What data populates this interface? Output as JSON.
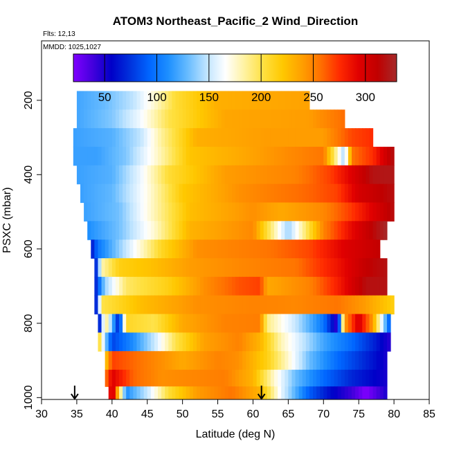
{
  "chart_data": {
    "type": "heatmap",
    "title": "ATOM3 Northeast_Pacific_2 Wind_Direction",
    "flights_label": "Flts: 12,13",
    "dates_label": "MMDD: 1025,1027",
    "xlabel": "Latitude (deg N)",
    "ylabel": "PSXC (mbar)",
    "xlim": [
      30,
      85
    ],
    "ylim": [
      1005,
      40
    ],
    "x_ticks": [
      30,
      35,
      40,
      45,
      50,
      55,
      60,
      65,
      70,
      75,
      80,
      85
    ],
    "y_ticks": [
      200,
      400,
      600,
      800,
      1000
    ],
    "colorbar": {
      "range": [
        20,
        330
      ],
      "ticks": [
        50,
        100,
        150,
        200,
        250,
        300
      ],
      "colors": [
        "#8000ff",
        "#4400dd",
        "#0000c8",
        "#0033dd",
        "#0066ff",
        "#1e90ff",
        "#66bbff",
        "#bfe4ff",
        "#ffffff",
        "#fff2a0",
        "#ffe040",
        "#ffc800",
        "#ffa000",
        "#ff7000",
        "#ff2a00",
        "#e00000",
        "#c00000",
        "#a52a2a"
      ]
    },
    "arrows": [
      34.7,
      61.2
    ],
    "layers": [
      {
        "p": 200,
        "lat_min": 35,
        "lat_max": 68,
        "profile": [
          [
            35,
            120
          ],
          [
            39,
            130
          ],
          [
            43,
            148
          ],
          [
            46,
            175
          ],
          [
            49,
            205
          ],
          [
            55,
            232
          ],
          [
            68,
            238
          ]
        ]
      },
      {
        "p": 250,
        "lat_min": 35,
        "lat_max": 73,
        "profile": [
          [
            35,
            120
          ],
          [
            40,
            135
          ],
          [
            44,
            162
          ],
          [
            48,
            200
          ],
          [
            56,
            236
          ],
          [
            68,
            240
          ],
          [
            73,
            258
          ]
        ]
      },
      {
        "p": 300,
        "lat_min": 34.5,
        "lat_max": 77,
        "profile": [
          [
            34.5,
            118
          ],
          [
            40,
            125
          ],
          [
            44,
            148
          ],
          [
            47,
            185
          ],
          [
            52,
            232
          ],
          [
            62,
            240
          ],
          [
            70,
            240
          ],
          [
            74,
            268
          ],
          [
            77,
            275
          ]
        ]
      },
      {
        "p": 350,
        "lat_min": 34.5,
        "lat_max": 80,
        "profile": [
          [
            34.5,
            118
          ],
          [
            38,
            118
          ],
          [
            42,
            135
          ],
          [
            46,
            172
          ],
          [
            51,
            222
          ],
          [
            64,
            245
          ],
          [
            70,
            255
          ],
          [
            73,
            140
          ],
          [
            74,
            255
          ],
          [
            77,
            275
          ],
          [
            80,
            320
          ]
        ]
      },
      {
        "p": 400,
        "lat_min": 35,
        "lat_max": 80,
        "profile": [
          [
            35,
            118
          ],
          [
            40,
            125
          ],
          [
            44,
            160
          ],
          [
            48,
            205
          ],
          [
            56,
            240
          ],
          [
            66,
            250
          ],
          [
            71,
            270
          ],
          [
            74,
            295
          ],
          [
            77,
            320
          ],
          [
            80,
            322
          ]
        ]
      },
      {
        "p": 450,
        "lat_min": 35.5,
        "lat_max": 80,
        "profile": [
          [
            35.5,
            118
          ],
          [
            40,
            128
          ],
          [
            45,
            170
          ],
          [
            50,
            220
          ],
          [
            58,
            245
          ],
          [
            68,
            260
          ],
          [
            72,
            270
          ],
          [
            75,
            300
          ],
          [
            80,
            318
          ]
        ]
      },
      {
        "p": 500,
        "lat_min": 36,
        "lat_max": 80,
        "profile": [
          [
            36,
            118
          ],
          [
            41,
            132
          ],
          [
            46,
            180
          ],
          [
            51,
            225
          ],
          [
            60,
            245
          ],
          [
            64,
            235
          ],
          [
            70,
            248
          ],
          [
            74,
            272
          ],
          [
            80,
            318
          ]
        ]
      },
      {
        "p": 550,
        "lat_min": 36.5,
        "lat_max": 79,
        "profile": [
          [
            36.5,
            110
          ],
          [
            41,
            132
          ],
          [
            46,
            175
          ],
          [
            51,
            230
          ],
          [
            60,
            248
          ],
          [
            65,
            140
          ],
          [
            70,
            250
          ],
          [
            74,
            290
          ],
          [
            79,
            330
          ]
        ]
      },
      {
        "p": 600,
        "lat_min": 37,
        "lat_max": 78,
        "profile": [
          [
            37,
            60
          ],
          [
            38,
            100
          ],
          [
            42,
            150
          ],
          [
            47,
            210
          ],
          [
            52,
            245
          ],
          [
            62,
            255
          ],
          [
            68,
            268
          ],
          [
            73,
            295
          ],
          [
            78,
            310
          ]
        ]
      },
      {
        "p": 650,
        "lat_min": 37.5,
        "lat_max": 79,
        "profile": [
          [
            37.5,
            40
          ],
          [
            38.5,
            180
          ],
          [
            41,
            215
          ],
          [
            46,
            225
          ],
          [
            51,
            240
          ],
          [
            58,
            248
          ],
          [
            66,
            255
          ],
          [
            72,
            285
          ],
          [
            76,
            310
          ],
          [
            79,
            320
          ]
        ]
      },
      {
        "p": 700,
        "lat_min": 37.5,
        "lat_max": 79,
        "profile": [
          [
            37.5,
            60
          ],
          [
            39,
            140
          ],
          [
            42,
            195
          ],
          [
            48,
            215
          ],
          [
            53,
            245
          ],
          [
            58,
            265
          ],
          [
            61,
            270
          ],
          [
            62,
            235
          ],
          [
            68,
            250
          ],
          [
            72,
            280
          ],
          [
            76,
            318
          ],
          [
            79,
            320
          ]
        ]
      },
      {
        "p": 750,
        "lat_min": 37.5,
        "lat_max": 80,
        "profile": [
          [
            37.5,
            30
          ],
          [
            38.5,
            200
          ],
          [
            44,
            225
          ],
          [
            52,
            245
          ],
          [
            60,
            250
          ],
          [
            66,
            248
          ],
          [
            72,
            255
          ],
          [
            76,
            240
          ],
          [
            80,
            215
          ]
        ]
      },
      {
        "p": 800,
        "lat_min": 38,
        "lat_max": 79.5,
        "profile": [
          [
            38,
            30
          ],
          [
            39,
            200
          ],
          [
            41,
            60
          ],
          [
            42,
            210
          ],
          [
            46,
            200
          ],
          [
            50,
            235
          ],
          [
            56,
            250
          ],
          [
            61,
            252
          ],
          [
            62,
            190
          ],
          [
            66,
            150
          ],
          [
            70,
            100
          ],
          [
            72,
            40
          ],
          [
            73,
            240
          ],
          [
            75,
            300
          ],
          [
            77,
            240
          ],
          [
            79.5,
            80
          ]
        ]
      },
      {
        "p": 850,
        "lat_min": 38,
        "lat_max": 79.5,
        "profile": [
          [
            38,
            220
          ],
          [
            39,
            140
          ],
          [
            40,
            80
          ],
          [
            43,
            110
          ],
          [
            46,
            150
          ],
          [
            49,
            200
          ],
          [
            53,
            238
          ],
          [
            58,
            250
          ],
          [
            61,
            230
          ],
          [
            64,
            180
          ],
          [
            67,
            150
          ],
          [
            70,
            120
          ],
          [
            74,
            95
          ],
          [
            77,
            70
          ],
          [
            79.5,
            45
          ]
        ]
      },
      {
        "p": 900,
        "lat_min": 39,
        "lat_max": 79,
        "profile": [
          [
            39,
            215
          ],
          [
            40,
            270
          ],
          [
            45,
            252
          ],
          [
            50,
            235
          ],
          [
            55,
            250
          ],
          [
            58,
            245
          ],
          [
            62,
            215
          ],
          [
            65,
            175
          ],
          [
            68,
            130
          ],
          [
            72,
            95
          ],
          [
            76,
            70
          ],
          [
            79,
            50
          ]
        ]
      },
      {
        "p": 950,
        "lat_min": 39,
        "lat_max": 79,
        "profile": [
          [
            39,
            250
          ],
          [
            40,
            295
          ],
          [
            43,
            260
          ],
          [
            47,
            245
          ],
          [
            51,
            248
          ],
          [
            56,
            252
          ],
          [
            60,
            230
          ],
          [
            63,
            175
          ],
          [
            66,
            130
          ],
          [
            70,
            95
          ],
          [
            74,
            70
          ],
          [
            79,
            50
          ]
        ]
      },
      {
        "p": 990,
        "lat_min": 39.5,
        "lat_max": 79,
        "profile": [
          [
            39.5,
            260
          ],
          [
            40,
            320
          ],
          [
            41,
            210
          ],
          [
            42,
            110
          ],
          [
            45,
            150
          ],
          [
            48,
            205
          ],
          [
            52,
            240
          ],
          [
            57,
            255
          ],
          [
            61,
            230
          ],
          [
            64,
            160
          ],
          [
            68,
            90
          ],
          [
            71,
            60
          ],
          [
            74,
            40
          ],
          [
            76,
            20
          ],
          [
            79,
            50
          ]
        ]
      }
    ]
  }
}
